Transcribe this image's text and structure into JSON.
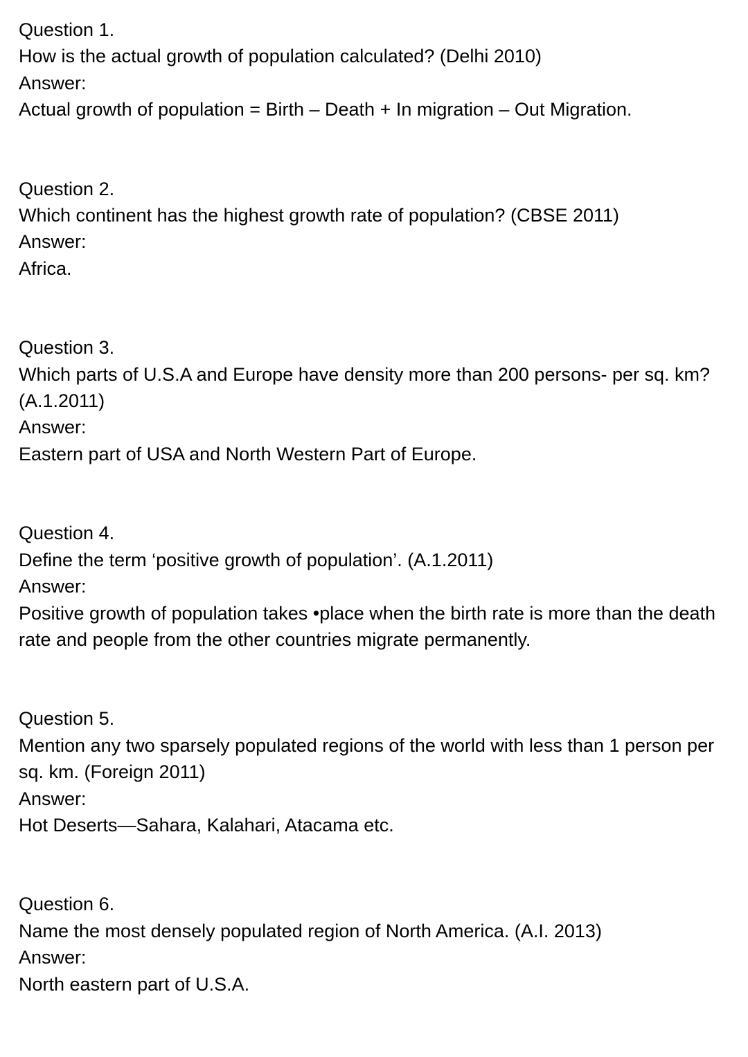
{
  "questions": [
    {
      "heading": "Question 1.",
      "question": "How is the actual growth of population calculated? (Delhi 2010)",
      "answer_label": "Answer:",
      "answer": "Actual growth of population = Birth – Death + In migration – Out Migration."
    },
    {
      "heading": "Question 2.",
      "question": "Which continent has the highest growth rate of population? (CBSE 2011)",
      "answer_label": "Answer:",
      "answer": "Africa."
    },
    {
      "heading": "Question 3.",
      "question": "Which parts of U.S.A and Europe have density more than 200 persons- per sq. km? (A.1.2011)",
      "answer_label": "Answer:",
      "answer": "Eastern part of USA and North Western Part of Europe."
    },
    {
      "heading": "Question 4.",
      "question": "Define the term ‘positive growth of population’. (A.1.2011)",
      "answer_label": "Answer:",
      "answer": "Positive growth of population takes •place when the birth rate is more than the death rate and people from the other countries migrate permanently."
    },
    {
      "heading": "Question 5.",
      "question": "Mention any two sparsely populated regions of the world with less than 1 person per sq. km. (Foreign 2011)",
      "answer_label": "Answer:",
      "answer": "Hot Deserts—Sahara, Kalahari, Atacama etc."
    },
    {
      "heading": "Question 6.",
      "question": "Name the most densely populated region of North America. (A.I. 2013)",
      "answer_label": "Answer:",
      "answer": "North eastern part of U.S.A."
    }
  ]
}
